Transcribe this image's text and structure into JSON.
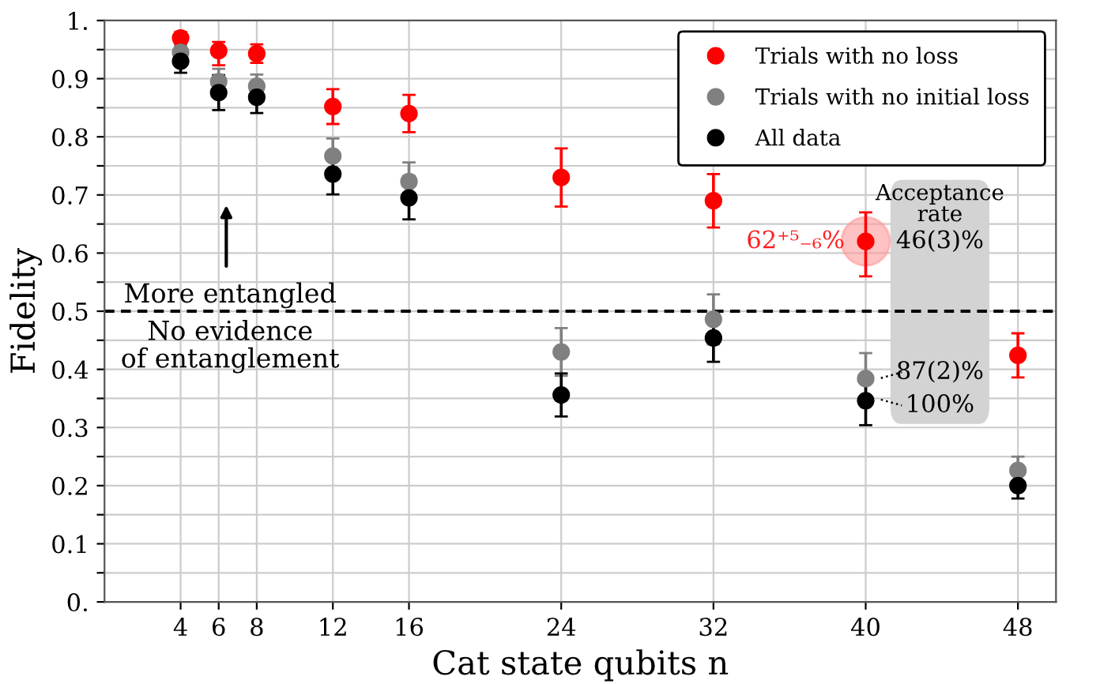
{
  "chart_data": {
    "type": "scatter",
    "xlabel": "Cat state qubits n",
    "ylabel": "Fidelity",
    "x": [
      4,
      6,
      8,
      12,
      16,
      24,
      32,
      40,
      48
    ],
    "xlim": [
      0,
      50
    ],
    "xticks": [
      4,
      6,
      8,
      12,
      16,
      24,
      32,
      40,
      48
    ],
    "ylim": [
      0,
      1
    ],
    "yticks": [
      {
        "value": 0,
        "label": "0."
      },
      {
        "value": 0.05,
        "label": null
      },
      0.1,
      {
        "value": 0.15,
        "label": null
      },
      0.2,
      {
        "value": 0.25,
        "label": null
      },
      0.3,
      {
        "value": 0.35,
        "label": null
      },
      0.4,
      {
        "value": 0.45,
        "label": null
      },
      0.5,
      {
        "value": 0.55,
        "label": null
      },
      0.6,
      {
        "value": 0.65,
        "label": null
      },
      0.7,
      {
        "value": 0.75,
        "label": null
      },
      0.8,
      {
        "value": 0.85,
        "label": null
      },
      0.9,
      {
        "value": 0.95,
        "label": null
      },
      {
        "value": 1,
        "label": "1."
      }
    ],
    "grid": true,
    "legend": "top right",
    "marker": "circle",
    "series": [
      {
        "name": "Trials with no loss",
        "color": "#ff0000",
        "values": [
          0.97,
          0.948,
          0.943,
          0.852,
          0.84,
          0.73,
          0.69,
          0.62,
          0.424
        ],
        "errors": [
          0.01,
          [
            0.923,
            0.963
          ],
          0.016,
          0.03,
          0.032,
          0.05,
          0.046,
          [
            0.56,
            0.67
          ],
          0.038
        ]
      },
      {
        "name": "Trials with no initial loss",
        "color": "#808080",
        "values": [
          0.945,
          0.895,
          0.887,
          0.767,
          0.723,
          0.43,
          0.486,
          0.384,
          0.226
        ],
        "errors": [
          0.012,
          0.022,
          0.02,
          0.03,
          0.033,
          0.041,
          0.043,
          0.044,
          0.024
        ]
      },
      {
        "name": "All data",
        "color": "#000000",
        "values": [
          0.93,
          0.876,
          0.868,
          0.736,
          0.695,
          0.356,
          0.454,
          0.346,
          0.2
        ],
        "errors": [
          0.02,
          0.03,
          0.027,
          0.035,
          0.037,
          0.037,
          0.041,
          0.042,
          0.022
        ]
      }
    ],
    "ref_lines": [
      {
        "axis": "y",
        "value": 0.5,
        "color": "#000000",
        "line_style": "dashed"
      }
    ],
    "annotations": [
      "More entangled",
      "No evidence\nof entanglement",
      "Acceptance\nrate",
      "46(3)%",
      "87(2)%",
      "100%",
      {
        "text": "62⁺⁵₋₆%",
        "x": 40,
        "y": 0.62
      }
    ]
  }
}
